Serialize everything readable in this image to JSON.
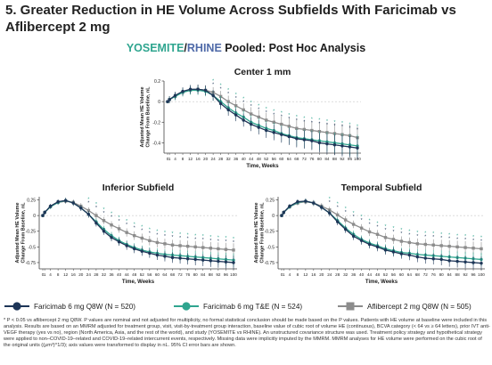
{
  "title": "5. Greater Reduction in HE Volume Across Subfields With Faricimab vs Aflibercept 2 mg",
  "subtitle": {
    "study1": "YOSEMITE",
    "sep": "/",
    "study2": "RHINE",
    "rest": " Pooled: Post Hoc Analysis"
  },
  "colors": {
    "faricimab_q8w": "#1d3557",
    "faricimab_te": "#2fa58f",
    "aflibercept": "#8c8c8c",
    "yosemite": "#2fa58f",
    "rhine": "#4f6aa8"
  },
  "legend": [
    {
      "label": "Faricimab 6 mg Q8W (N = 520)",
      "marker": "circle"
    },
    {
      "label": "Faricimab 6 mg T&E (N = 524)",
      "marker": "circle"
    },
    {
      "label": "Aflibercept 2 mg Q8W (N = 505)",
      "marker": "square"
    }
  ],
  "footnote": "* P < 0.05 vs aflibercept 2 mg Q8W. P values are nominal and not adjusted for multiplicity, no formal statistical conclusion should be made based on the P values. Patients with HE volume at baseline were included in this analysis. Results are based on an MMRM adjusted for treatment group, visit, visit-by-treatment group interaction, baseline value of cubic root of volume HE (continuous), BCVA category (< 64 vs ≥ 64 letters), prior IVT anti-VEGF therapy (yes vs no), region (North America, Asia, and the rest of the world), and study (YOSEMITE vs RHINE). An unstructured covariance structure was used. Treatment policy strategy and hypothetical strategy were applied to non–COVID-19–related and COVID-19–related intercurrent events, respectively. Missing data were implicitly imputed by the MMRM. MMRM analyses for HE volume were performed on the cubic root of the original units ((μm³)^1/3); axis values were transformed to display in nL. 95% CI error bars are shown.",
  "chart_data": [
    {
      "type": "line",
      "title": "Center 1 mm",
      "xlabel": "Time, Weeks",
      "ylabel": "Adjusted Mean HE Volume Change From Baseline, nL",
      "x": [
        0,
        1,
        4,
        8,
        12,
        16,
        20,
        24,
        28,
        32,
        36,
        40,
        44,
        48,
        52,
        56,
        60,
        64,
        68,
        72,
        76,
        80,
        84,
        88,
        92,
        96,
        100
      ],
      "x_tick_labels": [
        "0",
        "1",
        "4",
        "8",
        "12",
        "16",
        "20",
        "24",
        "28",
        "32",
        "36",
        "40",
        "44",
        "48",
        "52",
        "56",
        "60",
        "64",
        "68",
        "72",
        "76",
        "80",
        "84",
        "88",
        "92",
        "96",
        "100"
      ],
      "ylim": [
        -0.5,
        0.2
      ],
      "yticks": [
        0.2,
        0,
        -0.2,
        -0.4
      ],
      "series": [
        {
          "name": "Faricimab 6 mg Q8W (N = 520)",
          "values": [
            0,
            0.02,
            0.06,
            0.1,
            0.12,
            0.12,
            0.11,
            0.06,
            -0.02,
            -0.08,
            -0.13,
            -0.18,
            -0.22,
            -0.25,
            -0.28,
            -0.3,
            -0.32,
            -0.34,
            -0.36,
            -0.37,
            -0.38,
            -0.4,
            -0.41,
            -0.42,
            -0.43,
            -0.44,
            -0.45
          ]
        },
        {
          "name": "Faricimab 6 mg T&E (N = 524)",
          "values": [
            0,
            0.02,
            0.05,
            0.09,
            0.11,
            0.11,
            0.1,
            0.06,
            0.0,
            -0.06,
            -0.11,
            -0.15,
            -0.2,
            -0.23,
            -0.26,
            -0.28,
            -0.31,
            -0.33,
            -0.35,
            -0.36,
            -0.37,
            -0.38,
            -0.39,
            -0.4,
            -0.41,
            -0.42,
            -0.43
          ]
        },
        {
          "name": "Aflibercept 2 mg Q8W (N = 505)",
          "values": [
            0,
            0.02,
            0.05,
            0.09,
            0.11,
            0.12,
            0.11,
            0.09,
            0.05,
            0.0,
            -0.04,
            -0.08,
            -0.12,
            -0.15,
            -0.18,
            -0.2,
            -0.22,
            -0.24,
            -0.26,
            -0.27,
            -0.28,
            -0.29,
            -0.3,
            -0.31,
            -0.32,
            -0.33,
            -0.35
          ]
        }
      ]
    },
    {
      "type": "line",
      "title": "Inferior Subfield",
      "xlabel": "Time, Weeks",
      "ylabel": "Adjusted Mean HE Volume Change From Baseline, nL",
      "x": [
        0,
        1,
        4,
        8,
        12,
        16,
        20,
        24,
        28,
        32,
        36,
        40,
        44,
        48,
        52,
        56,
        60,
        64,
        68,
        72,
        76,
        80,
        84,
        88,
        92,
        96,
        100
      ],
      "x_tick_labels": [
        "0",
        "1",
        "4",
        "8",
        "12",
        "16",
        "20",
        "24",
        "28",
        "32",
        "36",
        "40",
        "44",
        "48",
        "52",
        "56",
        "60",
        "64",
        "68",
        "72",
        "76",
        "80",
        "84",
        "88",
        "92",
        "96",
        "100"
      ],
      "ylim": [
        -0.85,
        0.3
      ],
      "yticks": [
        0.25,
        0,
        -0.25,
        -0.5,
        -0.75
      ],
      "series": [
        {
          "name": "Faricimab 6 mg Q8W (N = 520)",
          "values": [
            0,
            0.05,
            0.15,
            0.22,
            0.24,
            0.2,
            0.12,
            0.02,
            -0.12,
            -0.25,
            -0.35,
            -0.42,
            -0.48,
            -0.53,
            -0.57,
            -0.6,
            -0.63,
            -0.65,
            -0.67,
            -0.68,
            -0.69,
            -0.7,
            -0.71,
            -0.72,
            -0.73,
            -0.74,
            -0.75
          ]
        },
        {
          "name": "Faricimab 6 mg T&E (N = 524)",
          "values": [
            0,
            0.05,
            0.14,
            0.21,
            0.24,
            0.2,
            0.12,
            0.02,
            -0.1,
            -0.22,
            -0.32,
            -0.4,
            -0.46,
            -0.51,
            -0.55,
            -0.58,
            -0.6,
            -0.62,
            -0.63,
            -0.64,
            -0.65,
            -0.66,
            -0.67,
            -0.68,
            -0.69,
            -0.7,
            -0.71
          ]
        },
        {
          "name": "Aflibercept 2 mg Q8W (N = 505)",
          "values": [
            0,
            0.05,
            0.14,
            0.21,
            0.23,
            0.21,
            0.15,
            0.08,
            0.0,
            -0.08,
            -0.15,
            -0.21,
            -0.27,
            -0.32,
            -0.36,
            -0.4,
            -0.43,
            -0.45,
            -0.47,
            -0.48,
            -0.49,
            -0.5,
            -0.51,
            -0.52,
            -0.53,
            -0.54,
            -0.55
          ]
        }
      ]
    },
    {
      "type": "line",
      "title": "Temporal Subfield",
      "xlabel": "Time, Weeks",
      "ylabel": "Adjusted Mean HE Volume Change From Baseline, nL",
      "x": [
        0,
        1,
        4,
        8,
        12,
        16,
        20,
        24,
        28,
        32,
        36,
        40,
        44,
        48,
        52,
        56,
        60,
        64,
        68,
        72,
        76,
        80,
        84,
        88,
        92,
        96,
        100
      ],
      "x_tick_labels": [
        "0",
        "1",
        "4",
        "8",
        "12",
        "16",
        "20",
        "24",
        "28",
        "32",
        "36",
        "40",
        "44",
        "48",
        "52",
        "56",
        "60",
        "64",
        "68",
        "72",
        "76",
        "80",
        "84",
        "88",
        "92",
        "96",
        "100"
      ],
      "ylim": [
        -0.85,
        0.3
      ],
      "yticks": [
        0.25,
        0,
        -0.25,
        -0.5,
        -0.75
      ],
      "series": [
        {
          "name": "Faricimab 6 mg Q8W (N = 520)",
          "values": [
            0,
            0.05,
            0.15,
            0.22,
            0.23,
            0.2,
            0.13,
            0.04,
            -0.1,
            -0.22,
            -0.33,
            -0.4,
            -0.46,
            -0.5,
            -0.55,
            -0.58,
            -0.61,
            -0.63,
            -0.66,
            -0.68,
            -0.69,
            -0.7,
            -0.72,
            -0.73,
            -0.74,
            -0.75,
            -0.76
          ]
        },
        {
          "name": "Faricimab 6 mg T&E (N = 524)",
          "values": [
            0,
            0.05,
            0.14,
            0.21,
            0.23,
            0.2,
            0.13,
            0.04,
            -0.08,
            -0.2,
            -0.3,
            -0.38,
            -0.44,
            -0.48,
            -0.53,
            -0.56,
            -0.59,
            -0.6,
            -0.62,
            -0.63,
            -0.64,
            -0.65,
            -0.66,
            -0.67,
            -0.68,
            -0.69,
            -0.7
          ]
        },
        {
          "name": "Aflibercept 2 mg Q8W (N = 505)",
          "values": [
            0,
            0.05,
            0.14,
            0.2,
            0.22,
            0.2,
            0.15,
            0.09,
            0.01,
            -0.07,
            -0.14,
            -0.2,
            -0.26,
            -0.3,
            -0.35,
            -0.38,
            -0.41,
            -0.43,
            -0.45,
            -0.46,
            -0.47,
            -0.48,
            -0.49,
            -0.5,
            -0.51,
            -0.52,
            -0.53
          ]
        }
      ]
    }
  ]
}
